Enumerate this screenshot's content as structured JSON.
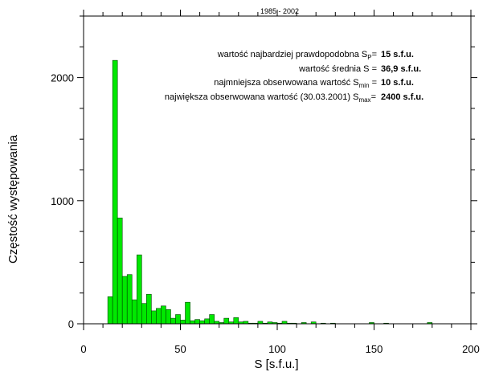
{
  "chart_data": {
    "type": "bar",
    "title": "1985 - 2002",
    "xlabel": "S [s.f.u.]",
    "ylabel": "Częstość występowania",
    "xlim": [
      0,
      200
    ],
    "ylim": [
      0,
      2500
    ],
    "xticks": [
      "0",
      "50",
      "100",
      "150",
      "200"
    ],
    "yticks": [
      "0",
      "1000",
      "2000"
    ],
    "bin_width": 2.5,
    "bins": [
      {
        "x": 12.5,
        "y": 220
      },
      {
        "x": 15,
        "y": 2140
      },
      {
        "x": 17.5,
        "y": 860
      },
      {
        "x": 20,
        "y": 385
      },
      {
        "x": 22.5,
        "y": 400
      },
      {
        "x": 25,
        "y": 195
      },
      {
        "x": 27.5,
        "y": 560
      },
      {
        "x": 30,
        "y": 165
      },
      {
        "x": 32.5,
        "y": 240
      },
      {
        "x": 35,
        "y": 105
      },
      {
        "x": 37.5,
        "y": 125
      },
      {
        "x": 40,
        "y": 145
      },
      {
        "x": 42.5,
        "y": 115
      },
      {
        "x": 45,
        "y": 45
      },
      {
        "x": 47.5,
        "y": 75
      },
      {
        "x": 50,
        "y": 30
      },
      {
        "x": 52.5,
        "y": 175
      },
      {
        "x": 55,
        "y": 25
      },
      {
        "x": 57.5,
        "y": 35
      },
      {
        "x": 60,
        "y": 25
      },
      {
        "x": 62.5,
        "y": 40
      },
      {
        "x": 65,
        "y": 75
      },
      {
        "x": 67.5,
        "y": 20
      },
      {
        "x": 70,
        "y": 10
      },
      {
        "x": 72.5,
        "y": 45
      },
      {
        "x": 75,
        "y": 15
      },
      {
        "x": 77.5,
        "y": 50
      },
      {
        "x": 80,
        "y": 15
      },
      {
        "x": 82.5,
        "y": 20
      },
      {
        "x": 85,
        "y": 5
      },
      {
        "x": 87.5,
        "y": 5
      },
      {
        "x": 90,
        "y": 20
      },
      {
        "x": 92.5,
        "y": 5
      },
      {
        "x": 95,
        "y": 15
      },
      {
        "x": 97.5,
        "y": 10
      },
      {
        "x": 100,
        "y": 5
      },
      {
        "x": 102.5,
        "y": 20
      },
      {
        "x": 105,
        "y": 5
      },
      {
        "x": 107.5,
        "y": 5
      },
      {
        "x": 112.5,
        "y": 10
      },
      {
        "x": 117.5,
        "y": 15
      },
      {
        "x": 122.5,
        "y": 5
      },
      {
        "x": 127.5,
        "y": 5
      },
      {
        "x": 147.5,
        "y": 10
      },
      {
        "x": 155,
        "y": 5
      },
      {
        "x": 177.5,
        "y": 10
      }
    ],
    "annotations": [
      {
        "text": "wartość najbardziej prawdopodobna S",
        "sub": "P",
        "suffix": "=",
        "value": "15 s.f.u."
      },
      {
        "text": "wartość średnia S",
        "sub": "",
        "suffix": " =",
        "value": "36,9 s.f.u."
      },
      {
        "text": "najmniejsza obserwowana wartość S",
        "sub": "min",
        "suffix": " =",
        "value": "10 s.f.u."
      },
      {
        "text": "największa obserwowana wartość (30.03.2001) S",
        "sub": "max",
        "suffix": "=",
        "value": "2400 s.f.u."
      }
    ],
    "colors": {
      "bar_fill": "#00e800",
      "bar_stroke": "#004400",
      "axis": "#000000"
    }
  }
}
